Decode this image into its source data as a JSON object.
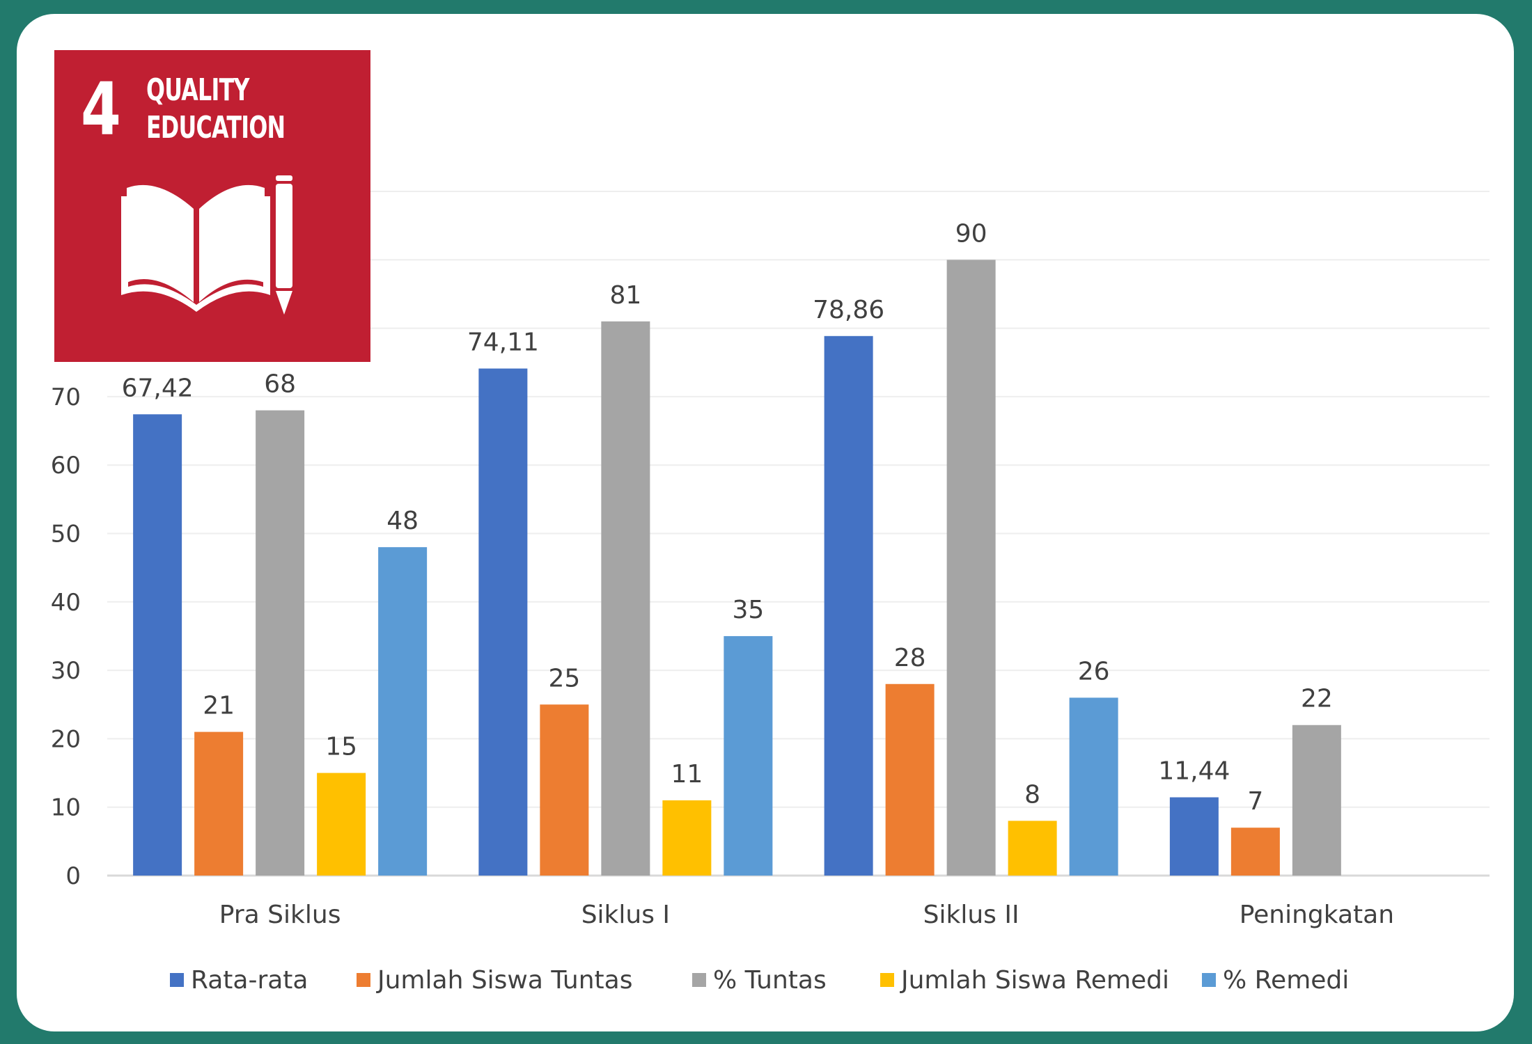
{
  "logo": {
    "number": "4",
    "title_line1": "QUALITY",
    "title_line2": "EDUCATION",
    "icon": "open-book-and-pencil-icon",
    "color": "#c01f32"
  },
  "chart_data": {
    "type": "bar",
    "categories": [
      "Pra Siklus",
      "Siklus I",
      "Siklus II",
      "Peningkatan"
    ],
    "series": [
      {
        "name": "Rata-rata",
        "values": [
          67.42,
          74.11,
          78.86,
          11.44
        ],
        "labels": [
          "67,42",
          "74,11",
          "78,86",
          "11,44"
        ],
        "color": "#4472c4"
      },
      {
        "name": "Jumlah Siswa Tuntas",
        "values": [
          21,
          25,
          28,
          7
        ],
        "labels": [
          "21",
          "25",
          "28",
          "7"
        ],
        "color": "#ed7d31"
      },
      {
        "name": "% Tuntas",
        "values": [
          68,
          81,
          90,
          22
        ],
        "labels": [
          "68",
          "81",
          "90",
          "22"
        ],
        "color": "#a5a5a5"
      },
      {
        "name": "Jumlah Siswa Remedi",
        "values": [
          15,
          11,
          8,
          null
        ],
        "labels": [
          "15",
          "11",
          "8",
          null
        ],
        "color": "#ffc000"
      },
      {
        "name": "% Remedi",
        "values": [
          48,
          35,
          26,
          null
        ],
        "labels": [
          "48",
          "35",
          "26",
          null
        ],
        "color": "#5b9bd5"
      }
    ],
    "ylim": [
      0,
      100
    ],
    "yticks": [
      "0",
      "10",
      "20",
      "30",
      "40",
      "50",
      "60",
      "70"
    ],
    "ytick_values": [
      0,
      10,
      20,
      30,
      40,
      50,
      60,
      70
    ],
    "grid": true,
    "legend_position": "bottom",
    "title": "",
    "xlabel": "",
    "ylabel": ""
  }
}
